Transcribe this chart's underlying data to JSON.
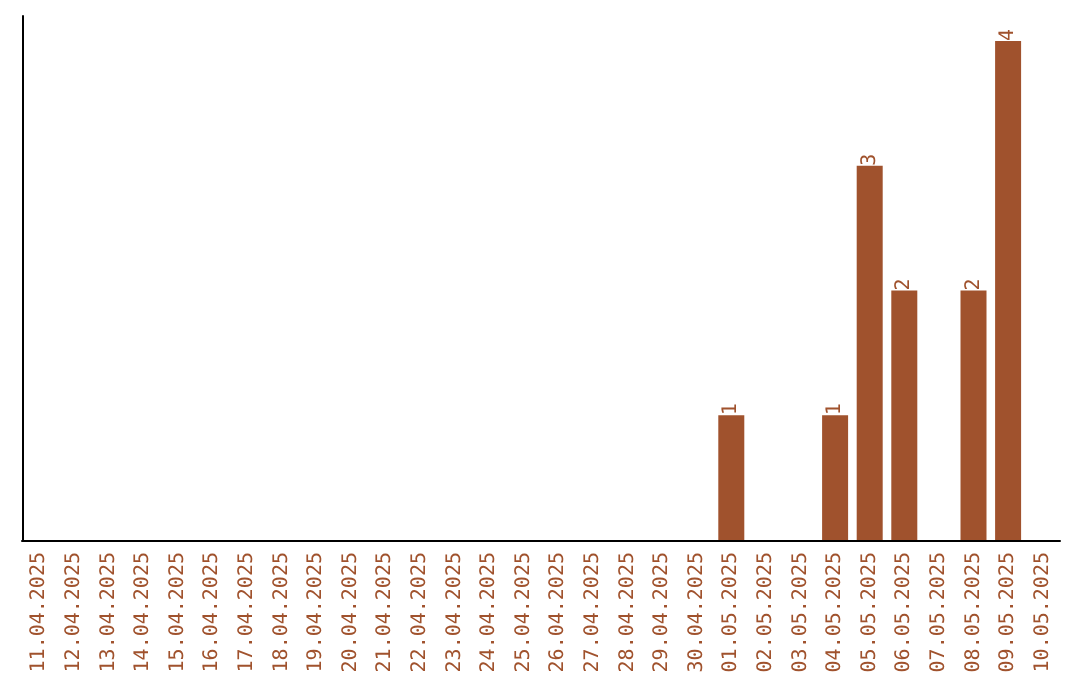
{
  "chart_data": {
    "type": "bar",
    "categories": [
      "11.04.2025",
      "12.04.2025",
      "13.04.2025",
      "14.04.2025",
      "15.04.2025",
      "16.04.2025",
      "17.04.2025",
      "18.04.2025",
      "19.04.2025",
      "20.04.2025",
      "21.04.2025",
      "22.04.2025",
      "23.04.2025",
      "24.04.2025",
      "25.04.2025",
      "26.04.2025",
      "27.04.2025",
      "28.04.2025",
      "29.04.2025",
      "30.04.2025",
      "01.05.2025",
      "02.05.2025",
      "03.05.2025",
      "04.05.2025",
      "05.05.2025",
      "06.05.2025",
      "07.05.2025",
      "08.05.2025",
      "09.05.2025",
      "10.05.2025"
    ],
    "values": [
      null,
      null,
      null,
      null,
      null,
      null,
      null,
      null,
      null,
      null,
      null,
      null,
      null,
      null,
      null,
      null,
      null,
      null,
      null,
      null,
      1,
      null,
      null,
      1,
      3,
      2,
      null,
      2,
      4,
      null
    ],
    "data_labels": true,
    "color": "#a0522d",
    "grid": false
  }
}
